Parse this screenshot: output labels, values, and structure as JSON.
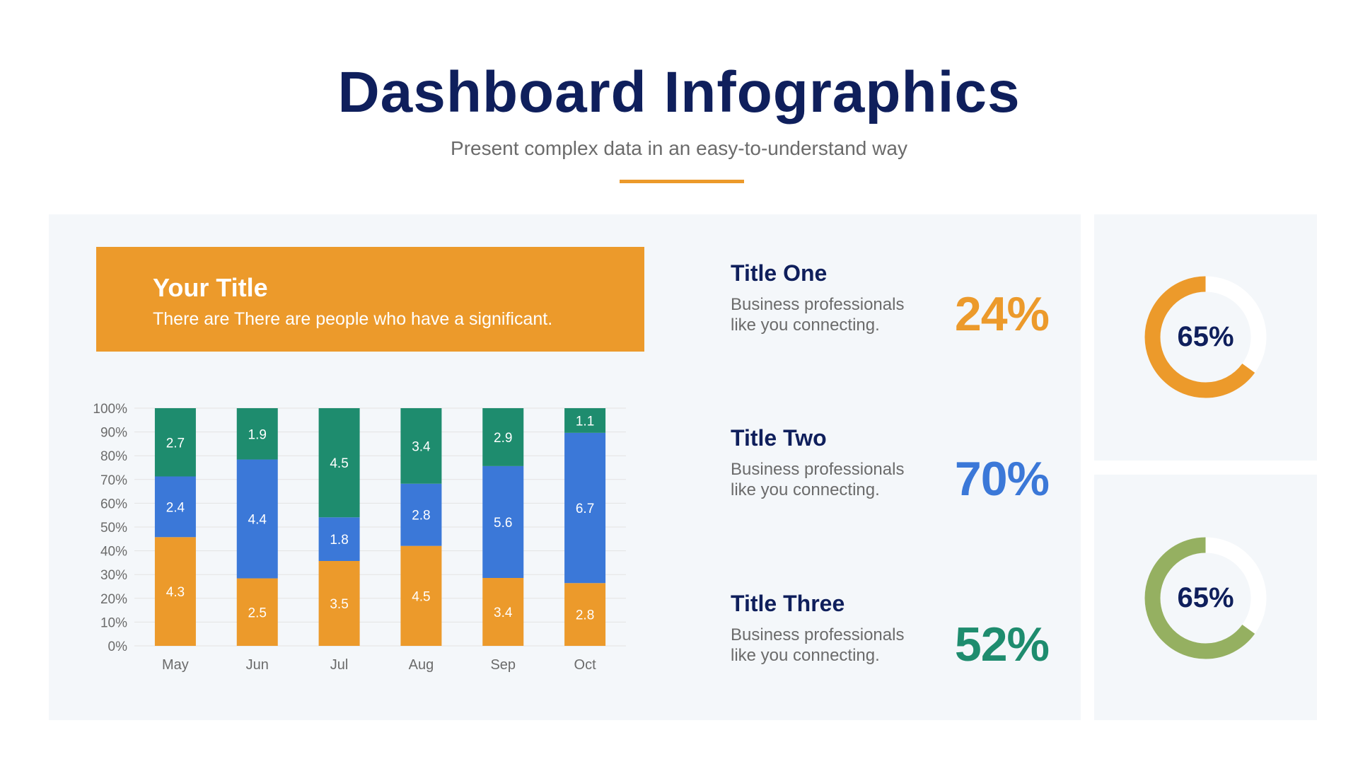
{
  "header": {
    "title": "Dashboard Infographics",
    "subtitle": "Present complex data in an easy-to-understand way"
  },
  "banner": {
    "title": "Your Title",
    "text": "There are There are people who have a significant."
  },
  "colors": {
    "navy": "#0f1f5c",
    "orange": "#ec9a2b",
    "blue": "#3b78d8",
    "green": "#1e8c6e",
    "olive": "#95b061",
    "panel": "#f4f7fa"
  },
  "kpis": [
    {
      "title": "Title One",
      "text": "Business professionals like you connecting.",
      "value": "24%",
      "color": "#ec9a2b"
    },
    {
      "title": "Title Two",
      "text": "Business professionals like you connecting.",
      "value": "70%",
      "color": "#3b78d8"
    },
    {
      "title": "Title Three",
      "text": "Business professionals like you connecting.",
      "value": "52%",
      "color": "#1e8c6e"
    }
  ],
  "donuts": [
    {
      "label": "65%",
      "value": 65,
      "color": "#ec9a2b"
    },
    {
      "label": "65%",
      "value": 65,
      "color": "#95b061"
    }
  ],
  "chart_data": {
    "type": "bar",
    "stacked": true,
    "normalized": true,
    "categories": [
      "May",
      "Jun",
      "Jul",
      "Aug",
      "Sep",
      "Oct"
    ],
    "series": [
      {
        "values": [
          4.3,
          2.5,
          3.5,
          4.5,
          3.4,
          2.8
        ],
        "color": "#ec9a2b"
      },
      {
        "values": [
          2.4,
          4.4,
          1.8,
          2.8,
          5.6,
          6.7
        ],
        "color": "#3b78d8"
      },
      {
        "values": [
          2.7,
          1.9,
          4.5,
          3.4,
          2.9,
          1.1
        ],
        "color": "#1e8c6e"
      }
    ],
    "yticks": [
      "0%",
      "10%",
      "20%",
      "30%",
      "40%",
      "50%",
      "60%",
      "70%",
      "80%",
      "90%",
      "100%"
    ],
    "ylim": [
      0,
      100
    ],
    "grid": true,
    "legend": "none"
  }
}
